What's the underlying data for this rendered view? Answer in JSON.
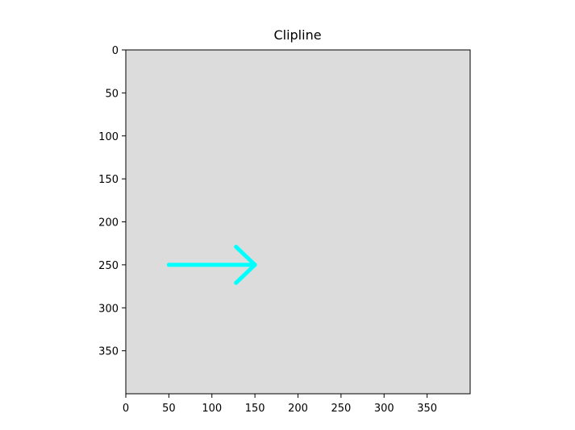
{
  "chart_data": {
    "type": "image",
    "title": "Clipline",
    "xlabel": "",
    "ylabel": "",
    "xlim": [
      0,
      400
    ],
    "ylim": [
      400,
      0
    ],
    "y_axis_inverted": true,
    "grid": false,
    "background_color": "#dcdcdc",
    "x_ticks": [
      0,
      50,
      100,
      150,
      200,
      250,
      300,
      350
    ],
    "y_ticks": [
      0,
      50,
      100,
      150,
      200,
      250,
      300,
      350
    ],
    "x_tick_labels": [
      "0",
      "50",
      "100",
      "150",
      "200",
      "250",
      "300",
      "350"
    ],
    "y_tick_labels": [
      "0",
      "50",
      "100",
      "150",
      "200",
      "250",
      "300",
      "350"
    ],
    "series": [
      {
        "kind": "arrow",
        "color": "#00ffff",
        "shaft": {
          "x": [
            50,
            150
          ],
          "y": [
            250,
            250
          ]
        },
        "head_upper": {
          "x": [
            128,
            150
          ],
          "y": [
            229,
            250
          ]
        },
        "head_lower": {
          "x": [
            128,
            150
          ],
          "y": [
            271,
            250
          ]
        }
      }
    ]
  }
}
